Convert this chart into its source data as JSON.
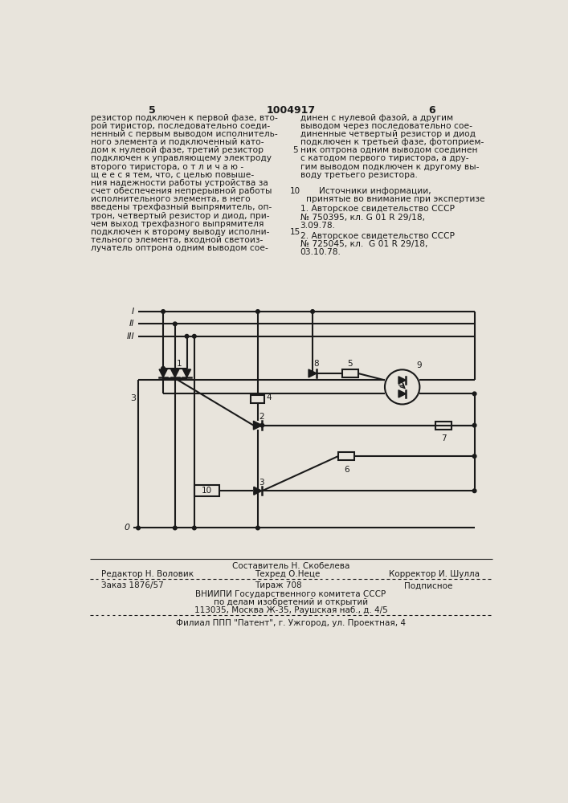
{
  "bg_color": "#e8e4dc",
  "text_color": "#1a1a1a",
  "line_color": "#1a1a1a",
  "page_num_left": "5",
  "page_num_center": "1004917",
  "page_num_right": "6",
  "col_left_text": [
    "резистор подключен к первой фазе, вто-",
    "рой тиристор, последовательно соеди-",
    "ненный с первым выводом исполнитель-",
    "ного элемента и подключенный като-",
    "дом к нулевой фазе, третий резистор",
    "подключен к управляющему электроду",
    "второго тиристора, о т л и ч а ю -",
    "щ е е с я тем, что, с целью повыше-",
    "ния надежности работы устройства за",
    "счет обеспечения непрерывной работы",
    "исполнительного элемента, в него",
    "введены трехфазный выпрямитель, оп-",
    "трон, четвертый резистор и диод, при-",
    "чем выход трехфазного выпрямителя",
    "подключен к второму выводу исполни-",
    "тельного элемента, входной светоиз-",
    "лучатель оптрона одним выводом сое-"
  ],
  "col_right_text": [
    "динен с нулевой фазой, а другим",
    "выводом через последовательно сое-",
    "диненные четвертый резистор и диод",
    "подключен к третьей фазе, фотоприем-",
    "ник оптрона одним выводом соединен",
    "с катодом первого тиристора, а дру-",
    "гим выводом подключен к другому вы-",
    "воду третьего резистора."
  ],
  "sources_header": "Источники информации,",
  "sources_subheader": "принятые во внимание при экспертизе",
  "source1": "1. Авторское свидетельство СССР",
  "source1b": "№ 750395, кл. G 01 R 29/18,",
  "source1c": "3.09.78.",
  "source2": "2. Авторское свидетельство СССР",
  "source2b": "№ 725045, кл.  G 01 R 29/18,",
  "source2c": "03.10.78.",
  "footer_line1": "Составитель Н. Скобелева",
  "footer_line2_left": "Редактор Н. Воловик",
  "footer_line2_mid": "Техред О.Неце",
  "footer_line2_right": "Корректор И. Шулла",
  "footer_line3_left": "Заказ 1876/57",
  "footer_line3_mid": "Тираж 708",
  "footer_line3_right": "Подписное",
  "footer_line4": "ВНИИПИ Государственного комитета СССР",
  "footer_line5": "по делам изобретений и открытий",
  "footer_line6": "113035, Москва Ж-35, Раушская наб., д. 4/5",
  "footer_line7": "Филиал ППП \"Патент\", г. Ужгород, ул. Проектная, 4"
}
